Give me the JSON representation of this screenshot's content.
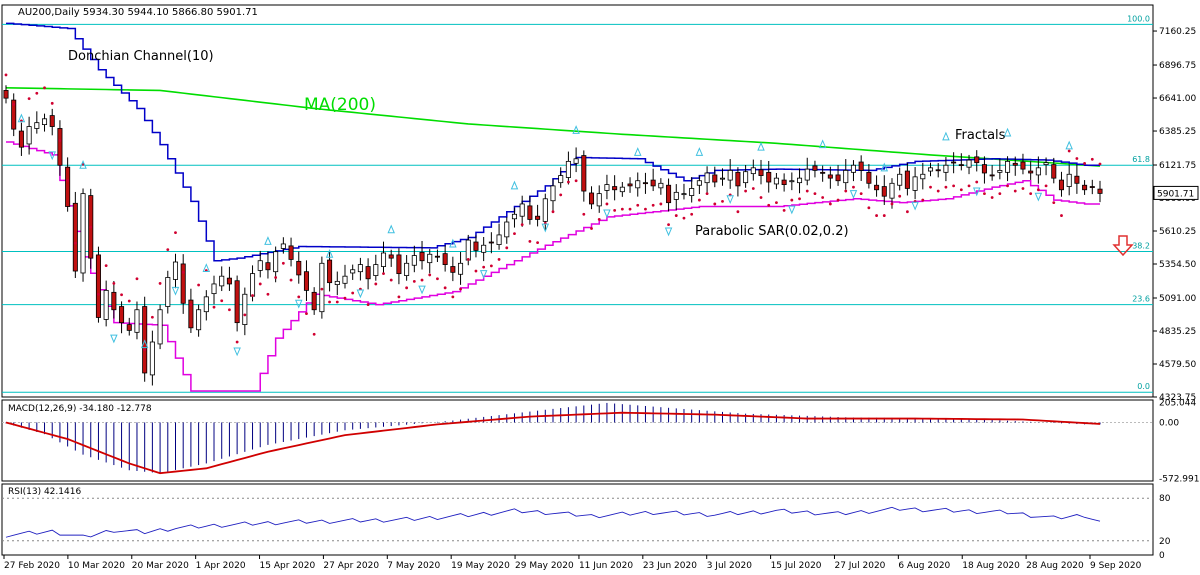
{
  "header": {
    "symbol_info": "AU200,Daily  5934.30 5944.10 5866.80 5901.71",
    "macd_label": "MACD(12,26,9) -34.180 -12.778",
    "rsi_label": "RSI(13) 42.1416"
  },
  "annotations": {
    "donchian": "Donchian Channel(10)",
    "ma200": "MA(200)",
    "fractals": "Fractals",
    "psar": "Parabolic SAR(0.02,0.2)"
  },
  "colors": {
    "up_candle": "#ffffff",
    "down_candle": "#c01010",
    "candle_outline": "#000000",
    "donchian_upper": "#0000c8",
    "donchian_lower": "#e000e0",
    "ma200": "#00dd00",
    "psar": "#d00030",
    "fractal": "#40c0e0",
    "fib_line": "#00c0c0",
    "macd_hist": "#000080",
    "macd_signal": "#d00000",
    "rsi_line": "#2020c0",
    "sell_arrow": "#e03030"
  },
  "chart_data": [
    {
      "type": "candlestick",
      "title": "AU200,Daily",
      "ohlc_header": {
        "open": 5934.3,
        "high": 5944.1,
        "low": 5866.8,
        "close": 5901.71
      },
      "last_price": "5901.71",
      "ylim": [
        4323.75,
        7300
      ],
      "y_ticks": [
        "7160.25",
        "6896.75",
        "6641.00",
        "6385.25",
        "6121.75",
        "5866.00",
        "5610.25",
        "5354.50",
        "5091.00",
        "4835.25",
        "4579.50",
        "4323.75"
      ],
      "x_tick_labels": [
        "27 Feb 2020",
        "10 Mar 2020",
        "20 Mar 2020",
        "1 Apr 2020",
        "15 Apr 2020",
        "27 Apr 2020",
        "7 May 2020",
        "19 May 2020",
        "29 May 2020",
        "11 Jun 2020",
        "23 Jun 2020",
        "3 Jul 2020",
        "15 Jul 2020",
        "27 Jul 2020",
        "6 Aug 2020",
        "18 Aug 2020",
        "28 Aug 2020",
        "9 Sep 2020"
      ],
      "fibonacci_levels": [
        {
          "label": "100.0",
          "price": 7212
        },
        {
          "label": "61.8",
          "price": 6120
        },
        {
          "label": "38.2",
          "price": 5451
        },
        {
          "label": "23.6",
          "price": 5040
        },
        {
          "label": "0.0",
          "price": 4361
        }
      ],
      "closes": [
        6640,
        6400,
        6260,
        6420,
        6450,
        6480,
        6420,
        6120,
        5800,
        5300,
        5900,
        5400,
        4940,
        5150,
        5000,
        4900,
        4840,
        5000,
        4510,
        4750,
        5000,
        5250,
        5370,
        5050,
        4860,
        5000,
        5100,
        5200,
        5260,
        5200,
        4900,
        5120,
        5280,
        5380,
        5310,
        5450,
        5510,
        5390,
        5270,
        5150,
        5000,
        5360,
        5210,
        5220,
        5260,
        5310,
        5350,
        5240,
        5350,
        5440,
        5400,
        5280,
        5360,
        5420,
        5380,
        5430,
        5410,
        5350,
        5290,
        5360,
        5540,
        5460,
        5500,
        5520,
        5580,
        5680,
        5740,
        5820,
        5700,
        5700,
        5860,
        5960,
        6040,
        6150,
        6170,
        5920,
        5820,
        5900,
        5970,
        5930,
        5950,
        5960,
        6000,
        5980,
        5960,
        5980,
        5830,
        5910,
        5900,
        5940,
        6000,
        6060,
        5990,
        6020,
        6080,
        5960,
        6070,
        6100,
        6040,
        5990,
        6020,
        5970,
        6000,
        6020,
        6090,
        6080,
        6060,
        6020,
        6000,
        6080,
        6120,
        6080,
        5980,
        5930,
        5880,
        5980,
        6050,
        5940,
        6030,
        6050,
        6100,
        6080,
        6120,
        6140,
        6120,
        6160,
        6140,
        6060,
        6040,
        6080,
        6150,
        6120,
        6090,
        6060,
        6100,
        6140,
        6020,
        5930,
        6050,
        5980,
        5930,
        5950,
        5901.71
      ],
      "ma200_anchors": [
        [
          0,
          6720
        ],
        [
          20,
          6700
        ],
        [
          40,
          6560
        ],
        [
          60,
          6440
        ],
        [
          80,
          6360
        ],
        [
          100,
          6290
        ],
        [
          120,
          6200
        ],
        [
          143,
          6110
        ]
      ],
      "donchian_upper_anchors": [
        [
          0,
          7220
        ],
        [
          8,
          7180
        ],
        [
          12,
          6860
        ],
        [
          17,
          6560
        ],
        [
          20,
          6280
        ],
        [
          24,
          5840
        ],
        [
          27,
          5380
        ],
        [
          30,
          5400
        ],
        [
          38,
          5490
        ],
        [
          55,
          5480
        ],
        [
          60,
          5560
        ],
        [
          70,
          5960
        ],
        [
          74,
          6180
        ],
        [
          82,
          6170
        ],
        [
          88,
          6000
        ],
        [
          92,
          6080
        ],
        [
          100,
          6090
        ],
        [
          112,
          6080
        ],
        [
          118,
          6150
        ],
        [
          128,
          6170
        ],
        [
          135,
          6160
        ],
        [
          140,
          6120
        ]
      ],
      "donchian_lower_anchors": [
        [
          0,
          6300
        ],
        [
          6,
          6200
        ],
        [
          10,
          5410
        ],
        [
          14,
          4900
        ],
        [
          20,
          4880
        ],
        [
          24,
          4370
        ],
        [
          32,
          4370
        ],
        [
          35,
          4780
        ],
        [
          40,
          5120
        ],
        [
          48,
          5040
        ],
        [
          58,
          5140
        ],
        [
          70,
          5500
        ],
        [
          78,
          5720
        ],
        [
          90,
          5800
        ],
        [
          100,
          5800
        ],
        [
          110,
          5860
        ],
        [
          116,
          5830
        ],
        [
          122,
          5860
        ],
        [
          128,
          5950
        ],
        [
          132,
          6000
        ],
        [
          136,
          5850
        ],
        [
          140,
          5820
        ]
      ],
      "macd": {
        "ylim": [
          -600,
          230
        ],
        "y_ticks": [
          "205.044",
          "0.00",
          "-572.991"
        ],
        "hist_anchors": [
          [
            0,
            -10
          ],
          [
            5,
            -120
          ],
          [
            10,
            -330
          ],
          [
            16,
            -490
          ],
          [
            20,
            -520
          ],
          [
            26,
            -420
          ],
          [
            34,
            -230
          ],
          [
            44,
            -80
          ],
          [
            58,
            20
          ],
          [
            70,
            130
          ],
          [
            78,
            200
          ],
          [
            86,
            150
          ],
          [
            96,
            90
          ],
          [
            110,
            50
          ],
          [
            124,
            40
          ],
          [
            140,
            -20
          ]
        ],
        "signal_anchors": [
          [
            0,
            0
          ],
          [
            8,
            -170
          ],
          [
            16,
            -420
          ],
          [
            20,
            -520
          ],
          [
            26,
            -470
          ],
          [
            34,
            -300
          ],
          [
            44,
            -130
          ],
          [
            56,
            -20
          ],
          [
            68,
            60
          ],
          [
            80,
            100
          ],
          [
            92,
            80
          ],
          [
            104,
            40
          ],
          [
            118,
            40
          ],
          [
            132,
            30
          ],
          [
            143,
            -20
          ]
        ]
      },
      "rsi": {
        "ylim": [
          0,
          100
        ],
        "y_ticks": [
          "80",
          "20",
          "0"
        ],
        "values_anchors": [
          [
            0,
            28
          ],
          [
            6,
            33
          ],
          [
            10,
            25
          ],
          [
            14,
            35
          ],
          [
            18,
            32
          ],
          [
            22,
            38
          ],
          [
            28,
            42
          ],
          [
            36,
            46
          ],
          [
            44,
            48
          ],
          [
            52,
            50
          ],
          [
            60,
            56
          ],
          [
            66,
            62
          ],
          [
            70,
            60
          ],
          [
            76,
            55
          ],
          [
            84,
            60
          ],
          [
            92,
            57
          ],
          [
            100,
            62
          ],
          [
            108,
            58
          ],
          [
            116,
            65
          ],
          [
            124,
            62
          ],
          [
            130,
            60
          ],
          [
            136,
            52
          ],
          [
            140,
            56
          ],
          [
            143,
            42
          ]
        ]
      }
    }
  ]
}
